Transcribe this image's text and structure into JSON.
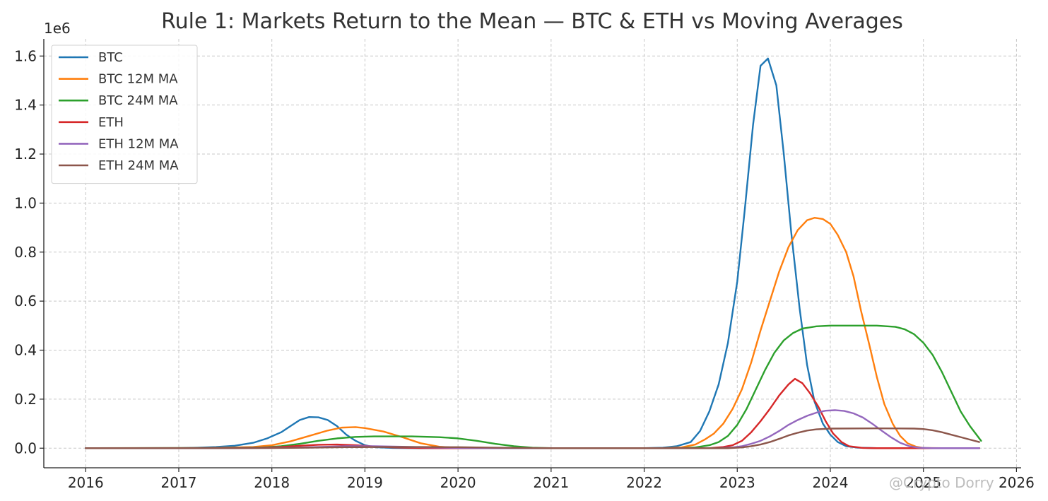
{
  "chart_data": {
    "type": "line",
    "title": "Rule 1: Markets Return to the Mean — BTC & ETH vs Moving Averages",
    "xlabel": "",
    "ylabel": "",
    "offset_text": "1e6",
    "xlim": [
      2015.55,
      2026.05
    ],
    "ylim": [
      -80000,
      1670000
    ],
    "x_ticks": [
      2016,
      2017,
      2018,
      2019,
      2020,
      2021,
      2022,
      2023,
      2024,
      2025,
      2026
    ],
    "x_tick_labels": [
      "2016",
      "2017",
      "2018",
      "2019",
      "2020",
      "2021",
      "2022",
      "2023",
      "2024",
      "2025",
      "2026"
    ],
    "y_ticks": [
      0,
      200000,
      400000,
      600000,
      800000,
      1000000,
      1200000,
      1400000,
      1600000
    ],
    "y_tick_labels": [
      "0.0",
      "0.2",
      "0.4",
      "0.6",
      "0.8",
      "1.0",
      "1.2",
      "1.4",
      "1.6"
    ],
    "grid": true,
    "legend_position": "upper-left",
    "series": [
      {
        "name": "BTC",
        "color": "#1f77b4",
        "points": [
          [
            2016.0,
            0
          ],
          [
            2016.5,
            0
          ],
          [
            2017.0,
            500
          ],
          [
            2017.2,
            2000
          ],
          [
            2017.4,
            5000
          ],
          [
            2017.6,
            10000
          ],
          [
            2017.8,
            22000
          ],
          [
            2017.95,
            40000
          ],
          [
            2018.1,
            65000
          ],
          [
            2018.2,
            90000
          ],
          [
            2018.3,
            115000
          ],
          [
            2018.4,
            127000
          ],
          [
            2018.5,
            126000
          ],
          [
            2018.6,
            115000
          ],
          [
            2018.7,
            90000
          ],
          [
            2018.8,
            55000
          ],
          [
            2018.9,
            30000
          ],
          [
            2019.0,
            12000
          ],
          [
            2019.1,
            4000
          ],
          [
            2019.3,
            1000
          ],
          [
            2019.6,
            0
          ],
          [
            2022.0,
            0
          ],
          [
            2022.2,
            2000
          ],
          [
            2022.35,
            8000
          ],
          [
            2022.5,
            25000
          ],
          [
            2022.6,
            70000
          ],
          [
            2022.7,
            150000
          ],
          [
            2022.8,
            260000
          ],
          [
            2022.9,
            430000
          ],
          [
            2023.0,
            680000
          ],
          [
            2023.08,
            970000
          ],
          [
            2023.17,
            1320000
          ],
          [
            2023.25,
            1560000
          ],
          [
            2023.33,
            1590000
          ],
          [
            2023.42,
            1480000
          ],
          [
            2023.5,
            1200000
          ],
          [
            2023.58,
            880000
          ],
          [
            2023.67,
            570000
          ],
          [
            2023.75,
            340000
          ],
          [
            2023.83,
            190000
          ],
          [
            2023.92,
            100000
          ],
          [
            2024.0,
            55000
          ],
          [
            2024.08,
            25000
          ],
          [
            2024.17,
            8000
          ],
          [
            2024.3,
            2000
          ],
          [
            2024.5,
            0
          ],
          [
            2025.6,
            0
          ]
        ]
      },
      {
        "name": "BTC 12M MA",
        "color": "#ff7f0e",
        "points": [
          [
            2016.0,
            0
          ],
          [
            2017.3,
            500
          ],
          [
            2017.8,
            5000
          ],
          [
            2018.0,
            12000
          ],
          [
            2018.2,
            28000
          ],
          [
            2018.4,
            50000
          ],
          [
            2018.6,
            72000
          ],
          [
            2018.75,
            84000
          ],
          [
            2018.9,
            86000
          ],
          [
            2019.0,
            82000
          ],
          [
            2019.2,
            68000
          ],
          [
            2019.4,
            45000
          ],
          [
            2019.6,
            20000
          ],
          [
            2019.8,
            6000
          ],
          [
            2020.0,
            1000
          ],
          [
            2020.3,
            0
          ],
          [
            2022.2,
            0
          ],
          [
            2022.4,
            3000
          ],
          [
            2022.55,
            15000
          ],
          [
            2022.65,
            35000
          ],
          [
            2022.75,
            60000
          ],
          [
            2022.85,
            100000
          ],
          [
            2022.95,
            160000
          ],
          [
            2023.05,
            240000
          ],
          [
            2023.15,
            350000
          ],
          [
            2023.25,
            480000
          ],
          [
            2023.35,
            600000
          ],
          [
            2023.45,
            720000
          ],
          [
            2023.55,
            820000
          ],
          [
            2023.65,
            890000
          ],
          [
            2023.75,
            930000
          ],
          [
            2023.83,
            940000
          ],
          [
            2023.92,
            935000
          ],
          [
            2024.0,
            915000
          ],
          [
            2024.08,
            870000
          ],
          [
            2024.17,
            800000
          ],
          [
            2024.25,
            700000
          ],
          [
            2024.33,
            560000
          ],
          [
            2024.42,
            420000
          ],
          [
            2024.5,
            290000
          ],
          [
            2024.58,
            180000
          ],
          [
            2024.67,
            100000
          ],
          [
            2024.75,
            50000
          ],
          [
            2024.83,
            20000
          ],
          [
            2024.92,
            6000
          ],
          [
            2025.0,
            1000
          ],
          [
            2025.2,
            0
          ],
          [
            2025.6,
            0
          ]
        ]
      },
      {
        "name": "BTC 24M MA",
        "color": "#2ca02c",
        "points": [
          [
            2016.0,
            0
          ],
          [
            2017.5,
            500
          ],
          [
            2017.9,
            3000
          ],
          [
            2018.1,
            8000
          ],
          [
            2018.3,
            18000
          ],
          [
            2018.5,
            30000
          ],
          [
            2018.7,
            40000
          ],
          [
            2018.9,
            46000
          ],
          [
            2019.1,
            48000
          ],
          [
            2019.5,
            48000
          ],
          [
            2019.8,
            45000
          ],
          [
            2020.0,
            40000
          ],
          [
            2020.2,
            30000
          ],
          [
            2020.4,
            18000
          ],
          [
            2020.6,
            8000
          ],
          [
            2020.8,
            2000
          ],
          [
            2021.0,
            0
          ],
          [
            2022.4,
            0
          ],
          [
            2022.55,
            3000
          ],
          [
            2022.7,
            12000
          ],
          [
            2022.8,
            25000
          ],
          [
            2022.9,
            50000
          ],
          [
            2023.0,
            95000
          ],
          [
            2023.1,
            160000
          ],
          [
            2023.2,
            240000
          ],
          [
            2023.3,
            320000
          ],
          [
            2023.4,
            390000
          ],
          [
            2023.5,
            440000
          ],
          [
            2023.6,
            470000
          ],
          [
            2023.7,
            488000
          ],
          [
            2023.85,
            497000
          ],
          [
            2024.0,
            500000
          ],
          [
            2024.5,
            500000
          ],
          [
            2024.7,
            495000
          ],
          [
            2024.8,
            485000
          ],
          [
            2024.9,
            465000
          ],
          [
            2025.0,
            430000
          ],
          [
            2025.1,
            380000
          ],
          [
            2025.2,
            310000
          ],
          [
            2025.3,
            230000
          ],
          [
            2025.4,
            150000
          ],
          [
            2025.5,
            90000
          ],
          [
            2025.58,
            50000
          ],
          [
            2025.62,
            30000
          ]
        ]
      },
      {
        "name": "ETH",
        "color": "#d62728",
        "points": [
          [
            2016.0,
            0
          ],
          [
            2017.6,
            500
          ],
          [
            2017.9,
            2000
          ],
          [
            2018.1,
            5000
          ],
          [
            2018.3,
            10000
          ],
          [
            2018.5,
            14000
          ],
          [
            2018.7,
            15000
          ],
          [
            2018.9,
            12000
          ],
          [
            2019.1,
            7000
          ],
          [
            2019.3,
            3000
          ],
          [
            2019.6,
            500
          ],
          [
            2019.9,
            0
          ],
          [
            2022.7,
            0
          ],
          [
            2022.85,
            5000
          ],
          [
            2022.95,
            12000
          ],
          [
            2023.05,
            30000
          ],
          [
            2023.15,
            65000
          ],
          [
            2023.25,
            110000
          ],
          [
            2023.35,
            160000
          ],
          [
            2023.45,
            215000
          ],
          [
            2023.55,
            260000
          ],
          [
            2023.62,
            283000
          ],
          [
            2023.7,
            265000
          ],
          [
            2023.78,
            225000
          ],
          [
            2023.87,
            170000
          ],
          [
            2023.95,
            110000
          ],
          [
            2024.03,
            60000
          ],
          [
            2024.12,
            25000
          ],
          [
            2024.2,
            8000
          ],
          [
            2024.35,
            1000
          ],
          [
            2024.5,
            0
          ],
          [
            2025.6,
            0
          ]
        ]
      },
      {
        "name": "ETH 12M MA",
        "color": "#9467bd",
        "points": [
          [
            2016.0,
            0
          ],
          [
            2017.8,
            500
          ],
          [
            2018.2,
            2000
          ],
          [
            2018.5,
            5000
          ],
          [
            2018.8,
            8000
          ],
          [
            2019.1,
            8000
          ],
          [
            2019.4,
            6000
          ],
          [
            2019.7,
            3000
          ],
          [
            2020.0,
            1000
          ],
          [
            2020.3,
            0
          ],
          [
            2022.8,
            0
          ],
          [
            2022.95,
            3000
          ],
          [
            2023.05,
            8000
          ],
          [
            2023.15,
            18000
          ],
          [
            2023.25,
            30000
          ],
          [
            2023.35,
            48000
          ],
          [
            2023.45,
            70000
          ],
          [
            2023.55,
            95000
          ],
          [
            2023.65,
            115000
          ],
          [
            2023.75,
            132000
          ],
          [
            2023.85,
            145000
          ],
          [
            2023.95,
            153000
          ],
          [
            2024.05,
            155000
          ],
          [
            2024.15,
            152000
          ],
          [
            2024.25,
            142000
          ],
          [
            2024.35,
            125000
          ],
          [
            2024.45,
            100000
          ],
          [
            2024.55,
            72000
          ],
          [
            2024.65,
            45000
          ],
          [
            2024.75,
            22000
          ],
          [
            2024.85,
            8000
          ],
          [
            2024.95,
            2000
          ],
          [
            2025.1,
            0
          ],
          [
            2025.6,
            0
          ]
        ]
      },
      {
        "name": "ETH 24M MA",
        "color": "#8c564b",
        "points": [
          [
            2016.0,
            0
          ],
          [
            2018.0,
            500
          ],
          [
            2018.4,
            2000
          ],
          [
            2018.8,
            4000
          ],
          [
            2019.2,
            5000
          ],
          [
            2019.6,
            5000
          ],
          [
            2020.0,
            4000
          ],
          [
            2020.4,
            2000
          ],
          [
            2020.8,
            500
          ],
          [
            2021.0,
            0
          ],
          [
            2022.9,
            0
          ],
          [
            2023.05,
            3000
          ],
          [
            2023.15,
            8000
          ],
          [
            2023.25,
            15000
          ],
          [
            2023.35,
            25000
          ],
          [
            2023.45,
            38000
          ],
          [
            2023.55,
            52000
          ],
          [
            2023.65,
            63000
          ],
          [
            2023.75,
            72000
          ],
          [
            2023.85,
            77000
          ],
          [
            2024.0,
            80000
          ],
          [
            2024.5,
            81000
          ],
          [
            2024.9,
            80000
          ],
          [
            2025.0,
            78000
          ],
          [
            2025.1,
            73000
          ],
          [
            2025.2,
            65000
          ],
          [
            2025.3,
            55000
          ],
          [
            2025.4,
            45000
          ],
          [
            2025.5,
            35000
          ],
          [
            2025.6,
            25000
          ]
        ]
      }
    ]
  },
  "watermark": "@Crypto Dorry"
}
